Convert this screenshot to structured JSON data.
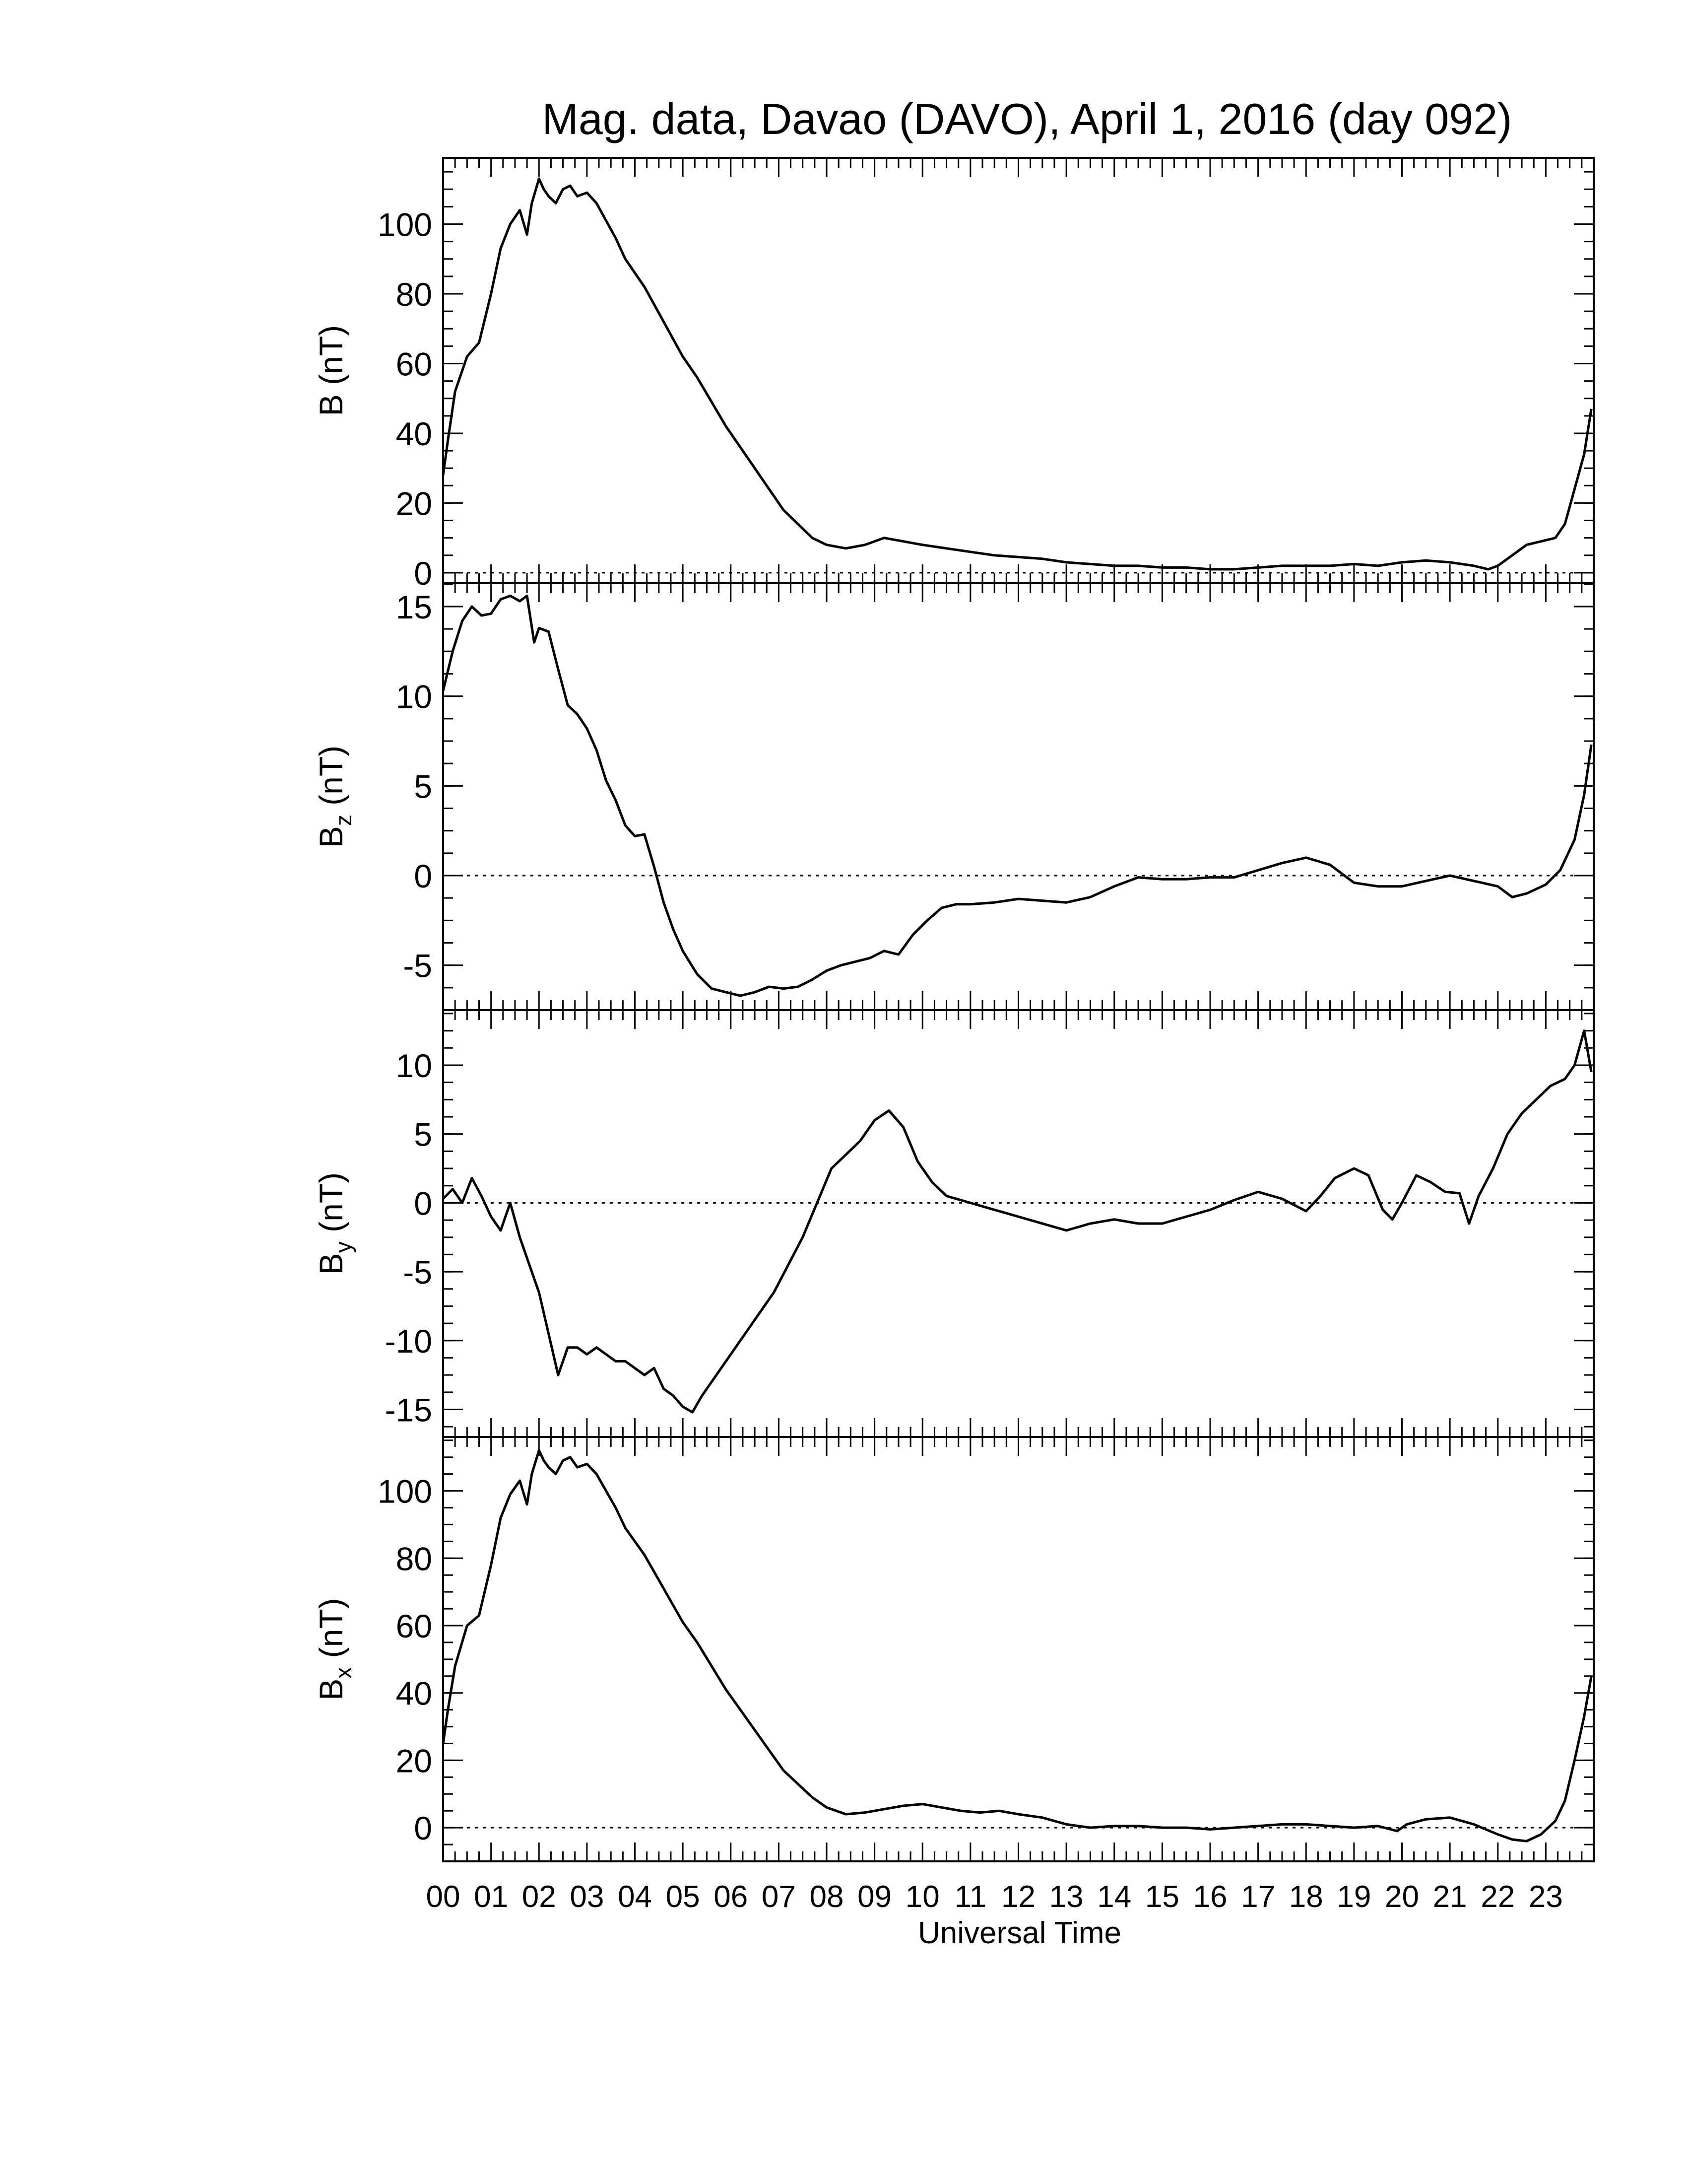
{
  "title": "Mag. data, Davao (DAVO), April 1, 2016 (day 092)",
  "xlabel": "Universal Time",
  "x_ticks": [
    "00",
    "01",
    "02",
    "03",
    "04",
    "05",
    "06",
    "07",
    "08",
    "09",
    "10",
    "11",
    "12",
    "13",
    "14",
    "15",
    "16",
    "17",
    "18",
    "19",
    "20",
    "21",
    "22",
    "23"
  ],
  "chart_data": [
    {
      "type": "line",
      "panel": "B",
      "ylabel_main": "B",
      "ylabel_sub": "",
      "ylabel_unit": "(nT)",
      "xlim": [
        0,
        24
      ],
      "ylim": [
        -3,
        119
      ],
      "yticks": [
        0,
        20,
        40,
        60,
        80,
        100
      ],
      "zero_line": true,
      "x": [
        0,
        0.1,
        0.25,
        0.5,
        0.75,
        1.0,
        1.2,
        1.4,
        1.6,
        1.75,
        1.85,
        2.0,
        2.1,
        2.2,
        2.35,
        2.5,
        2.65,
        2.8,
        3.0,
        3.2,
        3.4,
        3.6,
        3.8,
        4.0,
        4.2,
        4.4,
        4.6,
        4.8,
        5.0,
        5.3,
        5.6,
        5.9,
        6.2,
        6.5,
        6.8,
        7.1,
        7.4,
        7.7,
        8.0,
        8.4,
        8.8,
        9.2,
        9.6,
        10.0,
        10.5,
        11.0,
        11.5,
        12.0,
        12.5,
        13.0,
        13.5,
        14.0,
        14.5,
        15.0,
        15.5,
        16.0,
        16.5,
        17.0,
        17.5,
        18.0,
        18.5,
        19.0,
        19.5,
        20.0,
        20.5,
        21.0,
        21.5,
        21.8,
        22.0,
        22.3,
        22.6,
        22.9,
        23.2,
        23.4,
        23.6,
        23.8,
        23.95
      ],
      "y": [
        28,
        38,
        52,
        62,
        66,
        80,
        93,
        100,
        104,
        97,
        106,
        113,
        110,
        108,
        106,
        110,
        111,
        108,
        109,
        106,
        101,
        96,
        90,
        86,
        82,
        77,
        72,
        67,
        62,
        56,
        49,
        42,
        36,
        30,
        24,
        18,
        14,
        10,
        8,
        7,
        8,
        10,
        9,
        8,
        7,
        6,
        5,
        4.5,
        4,
        3,
        2.5,
        2,
        2,
        1.5,
        1.5,
        1,
        1,
        1.5,
        2,
        2,
        2,
        2.5,
        2,
        3,
        3.5,
        3,
        2,
        1,
        2,
        5,
        8,
        9,
        10,
        14,
        24,
        34,
        47
      ]
    },
    {
      "type": "line",
      "panel": "Bz",
      "ylabel_main": "B",
      "ylabel_sub": "z",
      "ylabel_unit": "(nT)",
      "xlim": [
        0,
        24
      ],
      "ylim": [
        -7.5,
        16.3
      ],
      "yticks": [
        -5,
        0,
        5,
        10,
        15
      ],
      "ytick_labels": [
        "-5",
        "0",
        "5",
        "10",
        "15"
      ],
      "zero_line": true,
      "x": [
        0,
        0.2,
        0.4,
        0.6,
        0.8,
        1.0,
        1.2,
        1.4,
        1.6,
        1.75,
        1.9,
        2.0,
        2.2,
        2.4,
        2.6,
        2.8,
        3.0,
        3.2,
        3.4,
        3.6,
        3.8,
        4.0,
        4.2,
        4.4,
        4.6,
        4.8,
        5.0,
        5.3,
        5.6,
        5.9,
        6.2,
        6.5,
        6.8,
        7.1,
        7.4,
        7.7,
        8.0,
        8.3,
        8.6,
        8.9,
        9.2,
        9.5,
        9.8,
        10.1,
        10.4,
        10.7,
        11.0,
        11.5,
        12.0,
        12.5,
        13.0,
        13.5,
        14.0,
        14.5,
        15.0,
        15.5,
        16.0,
        16.5,
        17.0,
        17.5,
        18.0,
        18.5,
        19.0,
        19.5,
        20.0,
        20.5,
        21.0,
        21.5,
        22.0,
        22.3,
        22.6,
        23.0,
        23.3,
        23.6,
        23.8,
        23.95
      ],
      "y": [
        10.3,
        12.5,
        14.2,
        15.0,
        14.5,
        14.6,
        15.4,
        15.6,
        15.3,
        15.6,
        13.0,
        13.8,
        13.6,
        11.5,
        9.5,
        9.0,
        8.2,
        7.0,
        5.3,
        4.2,
        2.8,
        2.2,
        2.3,
        0.5,
        -1.5,
        -3.0,
        -4.2,
        -5.5,
        -6.3,
        -6.5,
        -6.7,
        -6.5,
        -6.2,
        -6.3,
        -6.2,
        -5.8,
        -5.3,
        -5.0,
        -4.8,
        -4.6,
        -4.2,
        -4.4,
        -3.3,
        -2.5,
        -1.8,
        -1.6,
        -1.6,
        -1.5,
        -1.3,
        -1.4,
        -1.5,
        -1.2,
        -0.6,
        -0.1,
        -0.2,
        -0.2,
        -0.1,
        -0.1,
        0.3,
        0.7,
        1.0,
        0.6,
        -0.4,
        -0.6,
        -0.6,
        -0.3,
        0.0,
        -0.3,
        -0.6,
        -1.2,
        -1.0,
        -0.5,
        0.3,
        2.0,
        4.5,
        7.3
      ]
    },
    {
      "type": "line",
      "panel": "By",
      "ylabel_main": "B",
      "ylabel_sub": "y",
      "ylabel_unit": "(nT)",
      "xlim": [
        0,
        24
      ],
      "ylim": [
        -17,
        14
      ],
      "yticks": [
        -15,
        -10,
        -5,
        0,
        5,
        10
      ],
      "ytick_labels": [
        "-15",
        "-10",
        "-5",
        "0",
        "5",
        "10"
      ],
      "zero_line": true,
      "x": [
        0,
        0.2,
        0.4,
        0.6,
        0.8,
        1.0,
        1.2,
        1.4,
        1.6,
        1.8,
        2.0,
        2.2,
        2.4,
        2.6,
        2.8,
        3.0,
        3.2,
        3.4,
        3.6,
        3.8,
        4.0,
        4.2,
        4.4,
        4.6,
        4.8,
        5.0,
        5.2,
        5.4,
        5.7,
        6.0,
        6.3,
        6.6,
        6.9,
        7.2,
        7.5,
        7.8,
        8.1,
        8.4,
        8.7,
        9.0,
        9.3,
        9.6,
        9.9,
        10.2,
        10.5,
        10.8,
        11.0,
        11.5,
        12.0,
        12.5,
        13.0,
        13.5,
        14.0,
        14.5,
        15.0,
        15.5,
        16.0,
        16.5,
        17.0,
        17.5,
        18.0,
        18.3,
        18.6,
        19.0,
        19.3,
        19.6,
        19.8,
        20.0,
        20.3,
        20.6,
        20.9,
        21.2,
        21.4,
        21.6,
        21.9,
        22.2,
        22.5,
        22.8,
        23.1,
        23.4,
        23.6,
        23.8,
        23.95
      ],
      "y": [
        0.3,
        1.0,
        0.0,
        1.8,
        0.5,
        -1.0,
        -2.0,
        0.0,
        -2.5,
        -4.5,
        -6.5,
        -9.5,
        -12.5,
        -10.5,
        -10.5,
        -11.0,
        -10.5,
        -11.0,
        -11.5,
        -11.5,
        -12.0,
        -12.5,
        -12.0,
        -13.5,
        -14.0,
        -14.8,
        -15.2,
        -14.0,
        -12.5,
        -11.0,
        -9.5,
        -8.0,
        -6.5,
        -4.5,
        -2.5,
        0.0,
        2.5,
        3.5,
        4.5,
        6.0,
        6.7,
        5.5,
        3.0,
        1.5,
        0.5,
        0.2,
        0.0,
        -0.5,
        -1.0,
        -1.5,
        -2.0,
        -1.5,
        -1.2,
        -1.5,
        -1.5,
        -1.0,
        -0.5,
        0.2,
        0.8,
        0.3,
        -0.6,
        0.5,
        1.8,
        2.5,
        2.0,
        -0.5,
        -1.2,
        0.0,
        2.0,
        1.5,
        0.8,
        0.7,
        -1.5,
        0.5,
        2.5,
        5.0,
        6.5,
        7.5,
        8.5,
        9.0,
        10.0,
        12.5,
        9.5
      ]
    },
    {
      "type": "line",
      "panel": "Bx",
      "ylabel_main": "B",
      "ylabel_sub": "x",
      "ylabel_unit": "(nT)",
      "xlim": [
        0,
        24
      ],
      "ylim": [
        -10,
        116
      ],
      "yticks": [
        0,
        20,
        40,
        60,
        80,
        100
      ],
      "zero_line": true,
      "x": [
        0,
        0.1,
        0.25,
        0.5,
        0.75,
        1.0,
        1.2,
        1.4,
        1.6,
        1.75,
        1.85,
        2.0,
        2.1,
        2.2,
        2.35,
        2.5,
        2.65,
        2.8,
        3.0,
        3.2,
        3.4,
        3.6,
        3.8,
        4.0,
        4.2,
        4.4,
        4.6,
        4.8,
        5.0,
        5.3,
        5.6,
        5.9,
        6.2,
        6.5,
        6.8,
        7.1,
        7.4,
        7.7,
        8.0,
        8.4,
        8.8,
        9.2,
        9.6,
        10.0,
        10.4,
        10.8,
        11.2,
        11.6,
        12.0,
        12.5,
        13.0,
        13.5,
        14.0,
        14.5,
        15.0,
        15.5,
        16.0,
        16.5,
        17.0,
        17.5,
        18.0,
        18.5,
        19.0,
        19.5,
        19.9,
        20.1,
        20.5,
        21.0,
        21.5,
        22.0,
        22.3,
        22.6,
        22.9,
        23.2,
        23.4,
        23.6,
        23.8,
        23.95
      ],
      "y": [
        25,
        35,
        48,
        60,
        63,
        78,
        92,
        99,
        103,
        96,
        105,
        112,
        109,
        107,
        105,
        109,
        110,
        107,
        108,
        105,
        100,
        95,
        89,
        85,
        81,
        76,
        71,
        66,
        61,
        55,
        48,
        41,
        35,
        29,
        23,
        17,
        13,
        9,
        6,
        4,
        4.5,
        5.5,
        6.5,
        7,
        6,
        5,
        4.5,
        5,
        4,
        3,
        1,
        0,
        0.5,
        0.5,
        0,
        0,
        -0.5,
        0,
        0.5,
        1,
        1,
        0.5,
        0,
        0.5,
        -1,
        1,
        2.5,
        3,
        1,
        -2,
        -3.5,
        -4,
        -2,
        2,
        8,
        20,
        33,
        45
      ]
    }
  ]
}
